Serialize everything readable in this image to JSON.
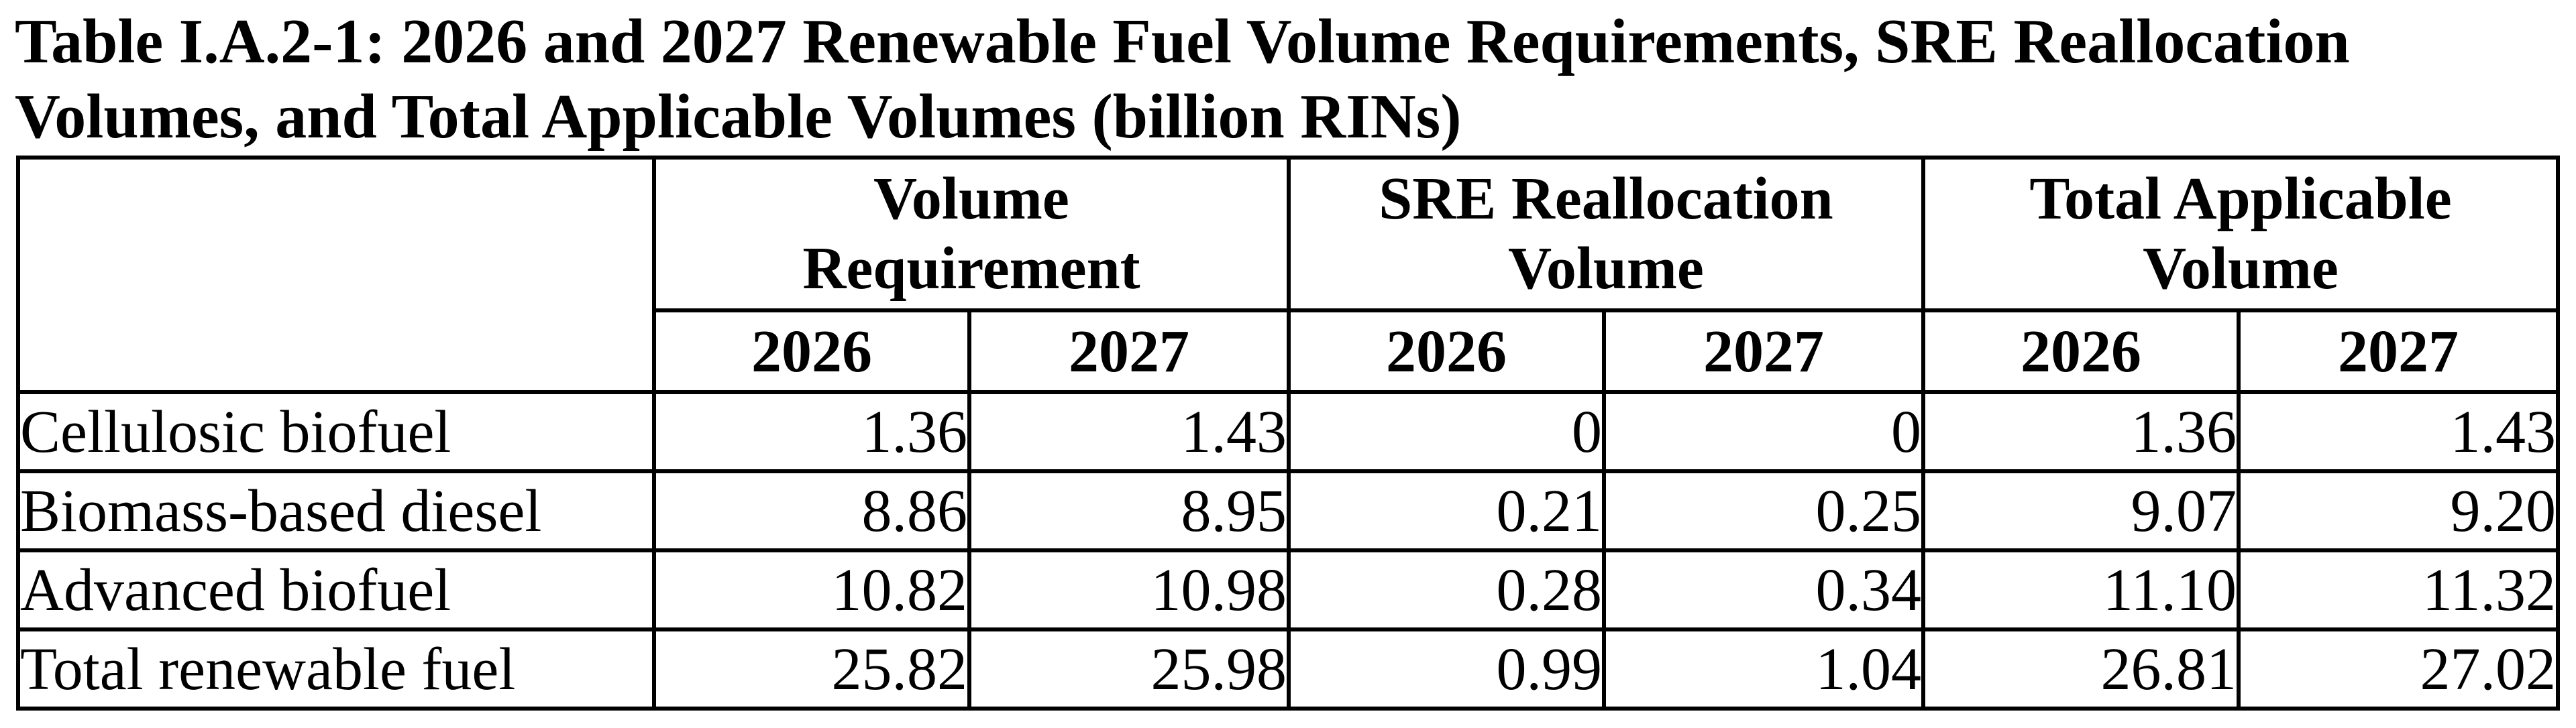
{
  "caption": {
    "line1": "Table I.A.2-1: 2026 and 2027 Renewable Fuel Volume Requirements, SRE Reallocation",
    "line2": "Volumes, and Total Applicable Volumes (billion RINs)"
  },
  "table": {
    "groups": [
      {
        "line1": "Volume",
        "line2": "Requirement"
      },
      {
        "line1": "SRE Reallocation",
        "line2": "Volume"
      },
      {
        "line1": "Total Applicable",
        "line2": "Volume"
      }
    ],
    "years": [
      "2026",
      "2027",
      "2026",
      "2027",
      "2026",
      "2027"
    ],
    "rows": [
      {
        "label": "Cellulosic biofuel",
        "values": [
          "1.36",
          "1.43",
          "0",
          "0",
          "1.36",
          "1.43"
        ]
      },
      {
        "label": "Biomass-based diesel",
        "values": [
          "8.86",
          "8.95",
          "0.21",
          "0.25",
          "9.07",
          "9.20"
        ]
      },
      {
        "label": "Advanced biofuel",
        "values": [
          "10.82",
          "10.98",
          "0.28",
          "0.34",
          "11.10",
          "11.32"
        ]
      },
      {
        "label": "Total renewable fuel",
        "values": [
          "25.82",
          "25.98",
          "0.99",
          "1.04",
          "26.81",
          "27.02"
        ]
      }
    ]
  }
}
